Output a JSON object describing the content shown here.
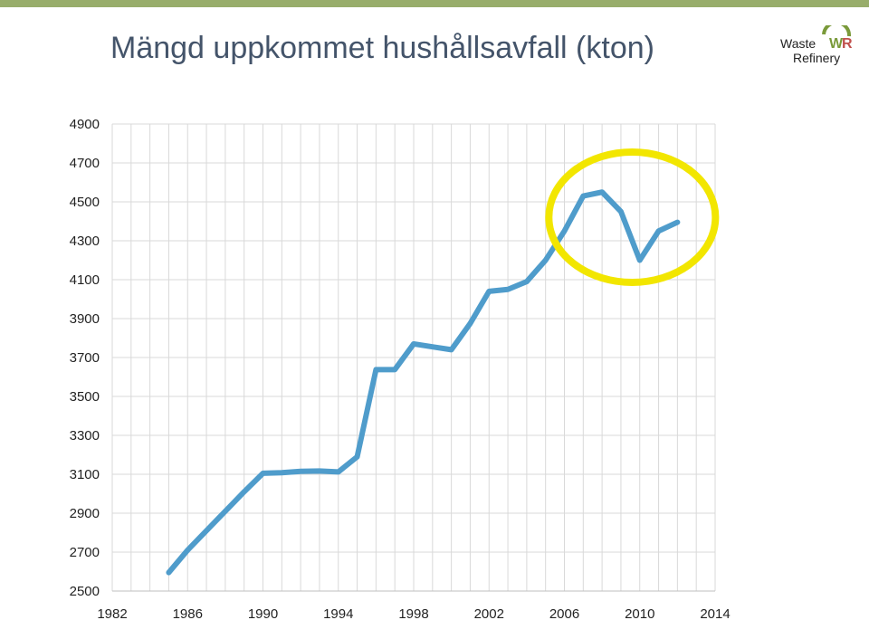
{
  "header": {
    "title": "Mängd uppkommet hushållsavfall (kton)",
    "accent_color": "#98ad6b",
    "title_color": "#44546a"
  },
  "logo": {
    "line1": "Waste",
    "line2": "Refinery",
    "mark": "WR",
    "mark_colors": [
      "#7a9a3a",
      "#c0504d"
    ]
  },
  "annotation": {
    "shape": "ellipse",
    "color": "#f2e600",
    "highlights_x_range": [
      2007,
      2012
    ]
  },
  "chart_data": {
    "type": "line",
    "title": "Mängd uppkommet hushållsavfall (kton)",
    "xlabel": "",
    "ylabel": "",
    "xlim": [
      1982,
      2014
    ],
    "ylim": [
      2500,
      4900
    ],
    "x_ticks": [
      1982,
      1986,
      1990,
      1994,
      1998,
      2002,
      2006,
      2010,
      2014
    ],
    "y_ticks": [
      2500,
      2700,
      2900,
      3100,
      3300,
      3500,
      3700,
      3900,
      4100,
      4300,
      4500,
      4700,
      4900
    ],
    "grid": true,
    "legend": "none",
    "series": [
      {
        "color": "#4f9ccb",
        "x": [
          1985,
          1986,
          1987,
          1988,
          1989,
          1990,
          1991,
          1992,
          1993,
          1994,
          1995,
          1996,
          1997,
          1998,
          1999,
          2000,
          2001,
          2002,
          2003,
          2004,
          2005,
          2006,
          2007,
          2008,
          2009,
          2010,
          2011,
          2012
        ],
        "values": [
          2595,
          2710,
          2810,
          2910,
          3010,
          3105,
          3108,
          3115,
          3117,
          3112,
          3190,
          3638,
          3638,
          3770,
          3755,
          3740,
          3875,
          4040,
          4050,
          4090,
          4200,
          4350,
          4530,
          4550,
          4450,
          4200,
          4350,
          4395
        ]
      }
    ]
  }
}
